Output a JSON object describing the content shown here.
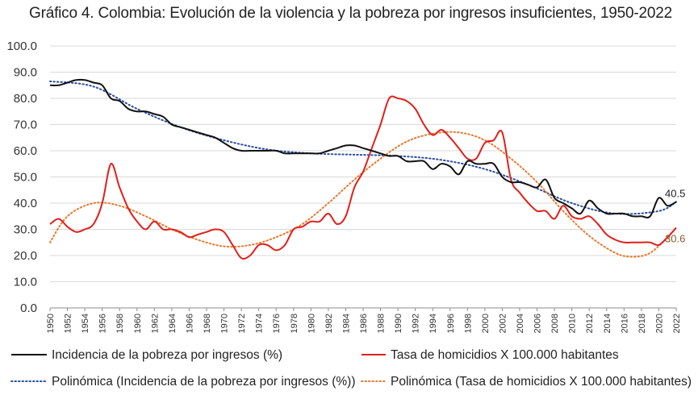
{
  "title": "Gráfico 4. Colombia: Evolución de la violencia y la pobreza por ingresos insuficientes, 1950-2022",
  "colors": {
    "poverty": "#111111",
    "homicide": "#e0201b",
    "poverty_trend": "#2b4ea2",
    "homicide_trend": "#e87a2e",
    "grid": "#d9d9d9"
  },
  "chart_data": {
    "type": "line",
    "title": "Gráfico 4. Colombia: Evolución de la violencia y la pobreza por ingresos insuficientes, 1950-2022",
    "ylim": [
      0,
      100
    ],
    "yticks": [
      "0.0",
      "10.0",
      "20.0",
      "30.0",
      "40.0",
      "50.0",
      "60.0",
      "70.0",
      "80.0",
      "90.0",
      "100.0"
    ],
    "xlim": [
      1950,
      2022
    ],
    "xticks": [
      "1950",
      "1952",
      "1954",
      "1956",
      "1958",
      "1960",
      "1962",
      "1964",
      "1966",
      "1968",
      "1970",
      "1972",
      "1974",
      "1976",
      "1978",
      "1980",
      "1982",
      "1984",
      "1986",
      "1988",
      "1990",
      "1992",
      "1994",
      "1996",
      "1998",
      "2000",
      "2002",
      "2004",
      "2006",
      "2008",
      "2010",
      "2012",
      "2014",
      "2016",
      "2018",
      "2020",
      "2022"
    ],
    "grid": "horizontal",
    "legend_position": "bottom",
    "series": [
      {
        "name": "Incidencia de la pobreza por ingresos (%)",
        "style": "solid",
        "color": "#111111",
        "x": [
          1950,
          1951,
          1952,
          1953,
          1954,
          1955,
          1956,
          1957,
          1958,
          1959,
          1960,
          1961,
          1962,
          1963,
          1964,
          1965,
          1966,
          1967,
          1968,
          1969,
          1970,
          1971,
          1972,
          1973,
          1974,
          1975,
          1976,
          1977,
          1978,
          1979,
          1980,
          1981,
          1982,
          1983,
          1984,
          1985,
          1986,
          1987,
          1988,
          1989,
          1990,
          1991,
          1992,
          1993,
          1994,
          1995,
          1996,
          1997,
          1998,
          1999,
          2000,
          2001,
          2002,
          2003,
          2004,
          2005,
          2006,
          2007,
          2008,
          2009,
          2010,
          2011,
          2012,
          2013,
          2014,
          2015,
          2016,
          2017,
          2018,
          2019,
          2020,
          2021,
          2022
        ],
        "values": [
          85,
          85,
          86,
          87,
          87,
          86,
          85,
          80,
          79,
          76,
          75,
          75,
          74,
          73,
          70,
          69,
          68,
          67,
          66,
          65,
          63,
          61,
          60,
          60,
          60,
          60,
          60,
          59,
          59,
          59,
          59,
          59,
          60,
          61,
          62,
          62,
          61,
          60,
          59,
          58,
          58,
          56,
          56,
          56,
          53,
          55,
          54,
          51,
          56,
          55,
          55,
          55,
          50,
          48,
          48,
          47,
          46,
          49,
          42,
          40,
          38,
          36,
          41,
          38,
          36,
          36,
          36,
          35,
          35,
          35,
          42,
          39,
          40.5
        ]
      },
      {
        "name": "Tasa de homicidios X 100.000 habitantes",
        "style": "solid",
        "color": "#e0201b",
        "x": [
          1950,
          1951,
          1952,
          1953,
          1954,
          1955,
          1956,
          1957,
          1958,
          1959,
          1960,
          1961,
          1962,
          1963,
          1964,
          1965,
          1966,
          1967,
          1968,
          1969,
          1970,
          1971,
          1972,
          1973,
          1974,
          1975,
          1976,
          1977,
          1978,
          1979,
          1980,
          1981,
          1982,
          1983,
          1984,
          1985,
          1986,
          1987,
          1988,
          1989,
          1990,
          1991,
          1992,
          1993,
          1994,
          1995,
          1996,
          1997,
          1998,
          1999,
          2000,
          2001,
          2002,
          2003,
          2004,
          2005,
          2006,
          2007,
          2008,
          2009,
          2010,
          2011,
          2012,
          2013,
          2014,
          2015,
          2016,
          2017,
          2018,
          2019,
          2020,
          2021,
          2022
        ],
        "values": [
          32,
          34,
          31,
          29,
          30,
          32,
          40,
          55,
          46,
          38,
          33,
          30,
          33,
          30,
          30,
          29,
          27,
          28,
          29,
          30,
          29,
          24,
          19,
          20,
          24,
          24,
          22,
          24,
          30,
          31,
          33,
          33,
          36,
          32,
          35,
          46,
          52,
          61,
          70,
          80,
          80,
          79,
          76,
          70,
          66,
          68,
          65,
          61,
          57,
          57,
          63,
          64,
          67,
          49,
          44,
          40,
          37,
          37,
          34,
          39,
          35,
          34,
          35,
          32,
          28,
          26,
          25,
          25,
          25,
          25,
          24,
          27,
          30.6
        ]
      },
      {
        "name": "Polinómica (Incidencia de la pobreza por ingresos (%))",
        "style": "dotted",
        "color": "#2b4ea2",
        "x": [
          1950,
          1955,
          1960,
          1965,
          1970,
          1975,
          1980,
          1985,
          1990,
          1995,
          2000,
          2005,
          2010,
          2015,
          2020,
          2022
        ],
        "values": [
          86.5,
          84.5,
          76,
          69,
          64,
          60.5,
          59,
          58.5,
          58,
          56.5,
          53,
          47,
          40,
          36,
          37,
          40.5
        ]
      },
      {
        "name": "Polinómica (Tasa de homicidios X 100.000 habitantes)",
        "style": "dotted",
        "color": "#e87a2e",
        "x": [
          1950,
          1952,
          1955,
          1958,
          1961,
          1964,
          1967,
          1970,
          1973,
          1976,
          1979,
          1982,
          1985,
          1988,
          1991,
          1994,
          1997,
          2000,
          2003,
          2006,
          2009,
          2012,
          2015,
          2017,
          2019,
          2021,
          2022
        ],
        "values": [
          25,
          35,
          40,
          39,
          35,
          30,
          26,
          23.5,
          24,
          27,
          32,
          40,
          49,
          57,
          63.5,
          66.5,
          67,
          64,
          57,
          48,
          37,
          27.5,
          21,
          19.5,
          21,
          27,
          30.6
        ]
      }
    ],
    "annotations": [
      {
        "text": "40.5",
        "x": 2022,
        "y": 40.5,
        "series": "Incidencia de la pobreza por ingresos (%)"
      },
      {
        "text": "30.6",
        "x": 2022,
        "y": 30.6,
        "series": "Tasa de homicidios X 100.000 habitantes"
      }
    ]
  }
}
